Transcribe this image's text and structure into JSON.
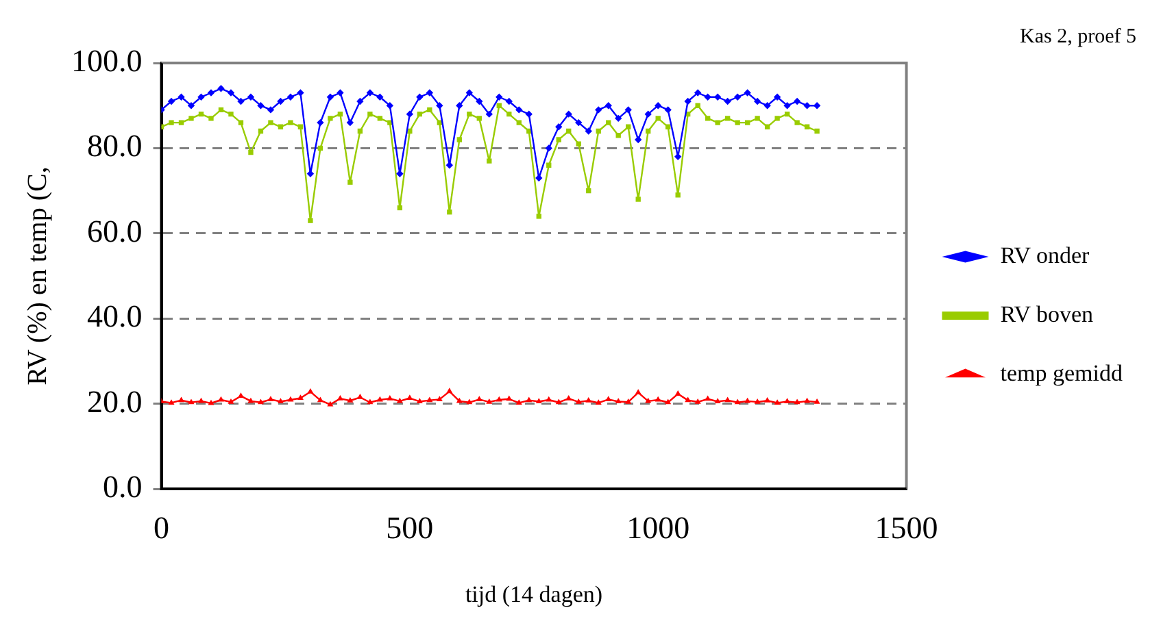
{
  "chart_data": {
    "type": "line",
    "title": "Kas 2, proef 5",
    "xlabel": "tijd (14 dagen)",
    "ylabel": "RV (%) en temp (C,",
    "x": [
      0,
      20,
      40,
      60,
      80,
      100,
      120,
      140,
      160,
      180,
      200,
      220,
      240,
      260,
      280,
      300,
      320,
      340,
      360,
      380,
      400,
      420,
      440,
      460,
      480,
      500,
      520,
      540,
      560,
      580,
      600,
      620,
      640,
      660,
      680,
      700,
      720,
      740,
      760,
      780,
      800,
      820,
      840,
      860,
      880,
      900,
      920,
      940,
      960,
      980,
      1000,
      1020,
      1040,
      1060,
      1080,
      1100,
      1120,
      1140,
      1160,
      1180,
      1200,
      1220,
      1240,
      1260,
      1280,
      1300,
      1320
    ],
    "series": [
      {
        "name": "RV onder",
        "color": "#0000ff",
        "marker": "diamond",
        "values": [
          89,
          91,
          92,
          90,
          92,
          93,
          94,
          93,
          91,
          92,
          90,
          89,
          91,
          92,
          93,
          74,
          86,
          92,
          93,
          86,
          91,
          93,
          92,
          90,
          74,
          88,
          92,
          93,
          90,
          76,
          90,
          93,
          91,
          88,
          92,
          91,
          89,
          88,
          73,
          80,
          85,
          88,
          86,
          84,
          89,
          90,
          87,
          89,
          82,
          88,
          90,
          89,
          78,
          91,
          93,
          92,
          92,
          91,
          92,
          93,
          91,
          90,
          92,
          90,
          91,
          90,
          90
        ]
      },
      {
        "name": "RV boven",
        "color": "#99cc00",
        "marker": "square",
        "values": [
          85,
          86,
          86,
          87,
          88,
          87,
          89,
          88,
          86,
          79,
          84,
          86,
          85,
          86,
          85,
          63,
          80,
          87,
          88,
          72,
          84,
          88,
          87,
          86,
          66,
          84,
          88,
          89,
          86,
          65,
          82,
          88,
          87,
          77,
          90,
          88,
          86,
          84,
          64,
          76,
          82,
          84,
          81,
          70,
          84,
          86,
          83,
          85,
          68,
          84,
          87,
          85,
          69,
          88,
          90,
          87,
          86,
          87,
          86,
          86,
          87,
          85,
          87,
          88,
          86,
          85,
          84
        ]
      },
      {
        "name": "temp gemidd",
        "color": "#ff0000",
        "marker": "triangle",
        "values": [
          20.5,
          20.2,
          20.8,
          20.3,
          20.6,
          20.1,
          20.9,
          20.4,
          21.8,
          20.6,
          20.3,
          21.0,
          20.5,
          20.9,
          21.3,
          22.8,
          20.8,
          19.8,
          21.2,
          20.7,
          21.5,
          20.3,
          20.9,
          21.2,
          20.6,
          21.3,
          20.5,
          20.8,
          21.0,
          22.9,
          20.6,
          20.3,
          21.0,
          20.4,
          20.9,
          21.1,
          20.2,
          20.8,
          20.5,
          20.9,
          20.3,
          21.2,
          20.4,
          20.7,
          20.2,
          21.0,
          20.5,
          20.4,
          22.6,
          20.6,
          20.9,
          20.3,
          22.3,
          20.8,
          20.4,
          21.1,
          20.5,
          20.8,
          20.3,
          20.6,
          20.4,
          20.7,
          20.2,
          20.5,
          20.3,
          20.6,
          20.4
        ]
      }
    ],
    "xlim": [
      0,
      1500
    ],
    "xticks": [
      0,
      500,
      1000,
      1500
    ],
    "ylim": [
      0,
      100
    ],
    "yticks": [
      {
        "value": 0,
        "label": "0.0"
      },
      {
        "value": 20,
        "label": "20.0"
      },
      {
        "value": 40,
        "label": "40.0"
      },
      {
        "value": 60,
        "label": "60.0"
      },
      {
        "value": 80,
        "label": "80.0"
      },
      {
        "value": 100,
        "label": "100.0"
      }
    ],
    "grid": "y",
    "legend": "right"
  }
}
